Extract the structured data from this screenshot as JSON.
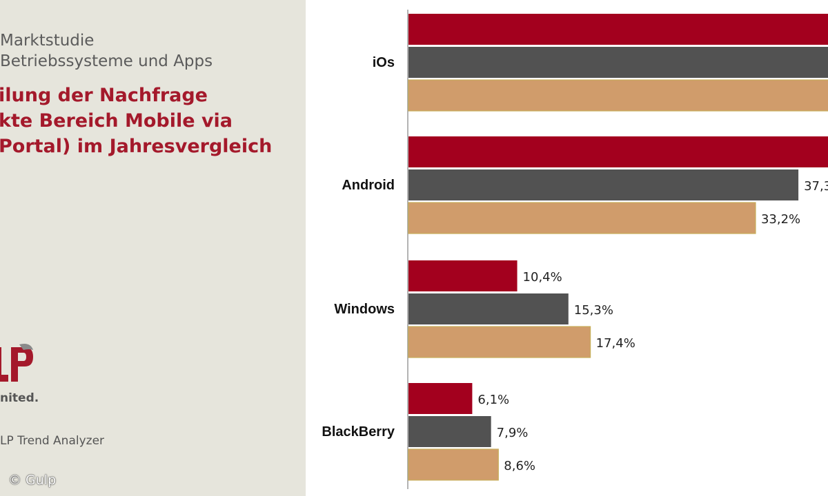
{
  "left_panel": {
    "study_title_line1": "Marktstudie",
    "study_title_line2": "Betriebssysteme und Apps",
    "headline_line1": "ilung der Nachfrage",
    "headline_line2": "kte Bereich Mobile via",
    "headline_line3": "Portal) im Jahresvergleich",
    "logo_text": "LP",
    "logo_tagline": "nited.",
    "source": "LP Trend Analyzer",
    "copyright": "© Gulp"
  },
  "colors": {
    "series_1": "#a3001e",
    "series_2": "#525252",
    "series_3": "#d09c6b",
    "panel_bg": "#e6e5dc",
    "headline": "#a4192b"
  },
  "chart_data": {
    "type": "bar",
    "orientation": "horizontal",
    "title": "",
    "xlabel": "",
    "ylabel": "",
    "categories": [
      "iOs",
      "Android",
      "Windows",
      "BlackBerry"
    ],
    "series": [
      {
        "values": [
          null,
          null,
          10.4,
          6.1
        ],
        "labels": [
          "",
          "",
          "10,4%",
          "6,1%"
        ]
      },
      {
        "values": [
          null,
          37.3,
          15.3,
          7.9
        ],
        "labels": [
          "",
          "37,3",
          "15,3%",
          "7,9%"
        ]
      },
      {
        "values": [
          null,
          33.2,
          17.4,
          8.6
        ],
        "labels": [
          "",
          "33,2%",
          "17,4%",
          "8,6%"
        ]
      }
    ],
    "xlim": [
      0,
      100
    ],
    "grid": false,
    "legend": "none"
  }
}
